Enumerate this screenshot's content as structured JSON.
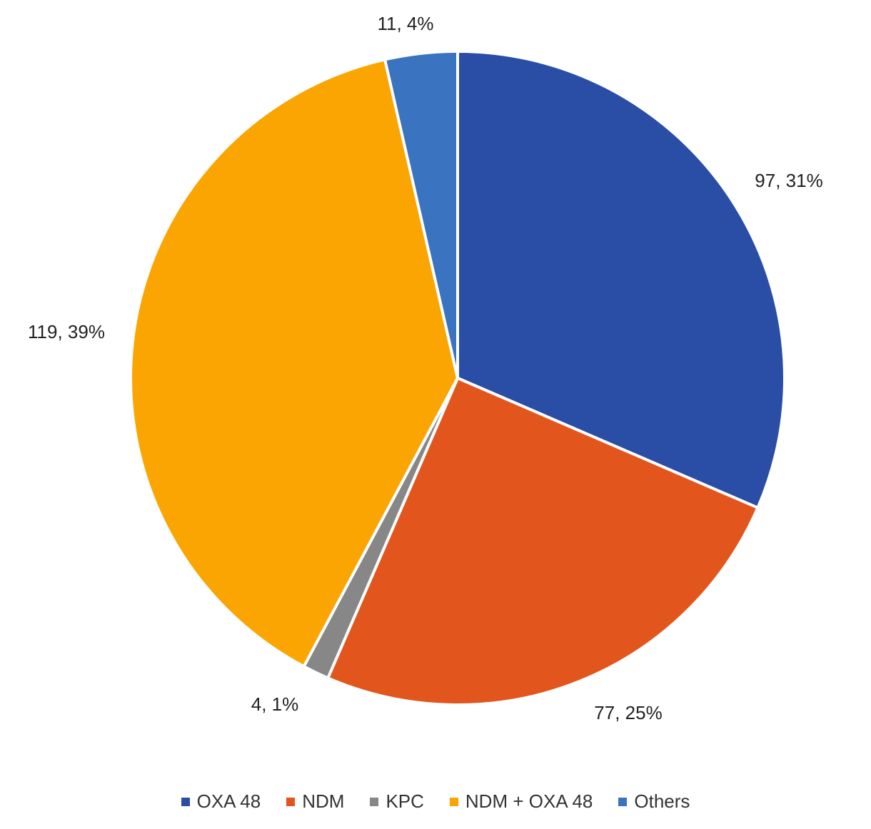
{
  "chart_data": {
    "type": "pie",
    "categories": [
      "OXA 48",
      "NDM",
      "KPC",
      "NDM + OXA 48",
      "Others"
    ],
    "values": [
      97,
      77,
      4,
      119,
      11
    ],
    "percentages": [
      31,
      25,
      1,
      39,
      4
    ],
    "data_labels": [
      "97, 31%",
      "77, 25%",
      "4, 1%",
      "119, 39%",
      "11, 4%"
    ],
    "colors": [
      "#2A4EA6",
      "#E2561E",
      "#878787",
      "#FBA503",
      "#3A74C0"
    ],
    "legend": {
      "position": "bottom",
      "entries": [
        "OXA 48",
        "NDM",
        "KPC",
        "NDM + OXA 48",
        "Others"
      ]
    },
    "start_angle": "12 o'clock",
    "direction": "clockwise"
  }
}
